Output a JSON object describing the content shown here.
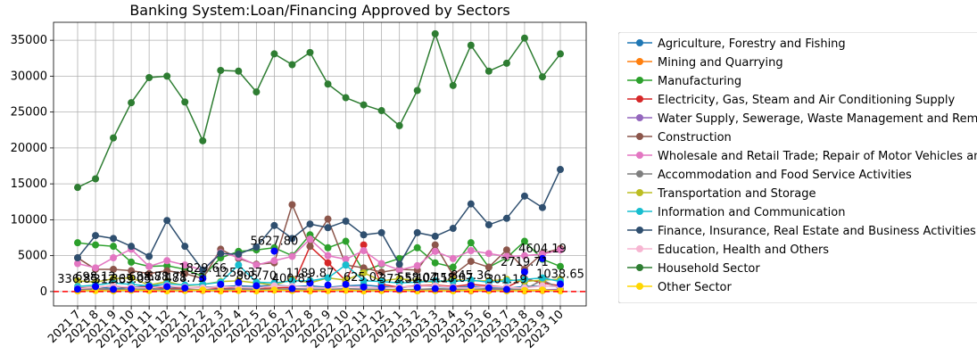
{
  "chart_data": {
    "type": "line",
    "title": "Banking System:Loan/Financing Approved by Sectors",
    "xlabel": "",
    "ylabel": "",
    "categories": [
      "2021 7",
      "2021 8",
      "2021 9",
      "2021 10",
      "2021 11",
      "2021 12",
      "2022 1",
      "2022 2",
      "2022 3",
      "2022 4",
      "2022 5",
      "2022 6",
      "2022 7",
      "2022 8",
      "2022 9",
      "2022 10",
      "2022 11",
      "2022 12",
      "2023 1",
      "2023 2",
      "2023 3",
      "2023 4",
      "2023 5",
      "2023 6",
      "2023 7",
      "2023 8",
      "2023 9",
      "2023 10"
    ],
    "y_ticks": [
      "0",
      "5000",
      "10000",
      "15000",
      "20000",
      "25000",
      "30000",
      "35000"
    ],
    "ylim": [
      -2000,
      37500
    ],
    "grid": true,
    "legend_position": "outside-right",
    "reference_line": {
      "value": 0,
      "color": "#ff0000",
      "style": "dashed"
    },
    "series": [
      {
        "name": "Agriculture, Forestry and Fishing",
        "color": "#1f77b4",
        "values": [
          300,
          700,
          400,
          600,
          800,
          700,
          500,
          600,
          700,
          800,
          700,
          900,
          700,
          800,
          600,
          800,
          900,
          700,
          500,
          800,
          700,
          600,
          700,
          600,
          500,
          700,
          800,
          700
        ]
      },
      {
        "name": "Mining and Quarrying",
        "color": "#ff7f0e",
        "values": [
          100,
          200,
          150,
          200,
          300,
          250,
          200,
          150,
          100,
          200,
          250,
          300,
          200,
          100,
          150,
          200,
          100,
          150,
          200,
          100,
          150,
          200,
          100,
          150,
          200,
          100,
          150,
          200
        ]
      },
      {
        "name": "Manufacturing",
        "color": "#2ca02c",
        "values": [
          6800,
          6500,
          6300,
          4100,
          3500,
          3600,
          3100,
          2100,
          4700,
          5600,
          5800,
          6100,
          5000,
          7900,
          6100,
          7000,
          2800,
          3800,
          4600,
          6100,
          4000,
          3400,
          6800,
          3400,
          4700,
          7000,
          4500,
          3500
        ]
      },
      {
        "name": "Electricity, Gas, Steam and Air Conditioning Supply",
        "color": "#d62728",
        "values": [
          500,
          600,
          800,
          500,
          700,
          400,
          500,
          600,
          400,
          500,
          400,
          500,
          600,
          6300,
          4000,
          1500,
          6500,
          1000,
          600,
          800,
          900,
          700,
          1000,
          800,
          600,
          1800,
          1200,
          800
        ]
      },
      {
        "name": "Water Supply, Sewerage, Waste Management and Remediation Activities",
        "color": "#9467bd",
        "values": [
          200,
          300,
          250,
          300,
          200,
          250,
          300,
          200,
          250,
          300,
          200,
          250,
          300,
          200,
          250,
          300,
          200,
          250,
          300,
          200,
          250,
          300,
          200,
          250,
          300,
          200,
          250,
          300
        ]
      },
      {
        "name": "Construction",
        "color": "#8c564b",
        "values": [
          4700,
          3100,
          3100,
          2900,
          2500,
          2900,
          2500,
          1800,
          5900,
          4600,
          3800,
          4000,
          12100,
          6300,
          10100,
          3700,
          3300,
          2700,
          3100,
          3000,
          6500,
          2300,
          4200,
          3400,
          5800,
          3100,
          5300,
          6000
        ]
      },
      {
        "name": "Wholesale and Retail Trade; Repair of Motor Vehicles and Motorcycles",
        "color": "#e377c2",
        "values": [
          3900,
          3300,
          4700,
          5900,
          3500,
          4300,
          3700,
          3000,
          5400,
          4800,
          3700,
          4300,
          4900,
          7300,
          5000,
          4500,
          5700,
          3900,
          3000,
          3600,
          5600,
          4600,
          5700,
          5300,
          4900,
          5000,
          5200,
          5800
        ]
      },
      {
        "name": "Accommodation and Food Service Activities",
        "color": "#7f7f7f",
        "values": [
          300,
          400,
          350,
          300,
          400,
          350,
          300,
          250,
          300,
          400,
          350,
          300,
          400,
          350,
          300,
          400,
          350,
          300,
          250,
          300,
          400,
          350,
          300,
          400,
          350,
          300,
          1600,
          400
        ]
      },
      {
        "name": "Transportation and Storage",
        "color": "#bcbd22",
        "values": [
          1500,
          1300,
          1800,
          1900,
          900,
          1400,
          800,
          1000,
          1400,
          1500,
          1200,
          900,
          1700,
          1200,
          1900,
          1600,
          2600,
          1500,
          1800,
          1500,
          1300,
          1700,
          1500,
          1500,
          1700,
          1400,
          1600,
          1700
        ]
      },
      {
        "name": "Information and Communication",
        "color": "#17becf",
        "values": [
          700,
          900,
          1200,
          1000,
          800,
          1100,
          900,
          1000,
          1300,
          3700,
          1300,
          1200,
          1500,
          1500,
          1900,
          3700,
          1500,
          1400,
          1200,
          1300,
          1500,
          1400,
          1600,
          1300,
          1500,
          1700,
          1900,
          1400
        ]
      },
      {
        "name": "Finance, Insurance, Real Estate and Business Activities",
        "color": "#2f4f6f",
        "values": [
          4700,
          7800,
          7400,
          6300,
          4900,
          9900,
          6300,
          3000,
          5300,
          5200,
          6200,
          9200,
          7400,
          9400,
          8900,
          9800,
          7900,
          8200,
          3800,
          8200,
          7700,
          8800,
          12200,
          9300,
          10200,
          13300,
          11700,
          17000
        ]
      },
      {
        "name": "Education, Health and Others",
        "color": "#f7b6d2",
        "values": [
          400,
          600,
          800,
          600,
          500,
          800,
          600,
          500,
          700,
          600,
          500,
          800,
          700,
          600,
          500,
          700,
          600,
          500,
          600,
          700,
          800,
          600,
          500,
          700,
          600,
          500,
          800,
          700
        ]
      },
      {
        "name": "Household Sector",
        "color": "#2e7d32",
        "values": [
          14500,
          15700,
          21400,
          26300,
          29800,
          30000,
          26400,
          21000,
          30800,
          30700,
          27800,
          33100,
          31600,
          33300,
          28900,
          27000,
          26000,
          25200,
          23100,
          28000,
          35900,
          28700,
          34300,
          30700,
          31800,
          35300,
          29900,
          33100
        ]
      },
      {
        "name": "Other Sector",
        "color": "#ffd700",
        "values": [
          100,
          150,
          100,
          200,
          150,
          100,
          150,
          200,
          100,
          150,
          100,
          200,
          150,
          100,
          150,
          200,
          100,
          150,
          200,
          100,
          150,
          100,
          200,
          150,
          100,
          150,
          200,
          100
        ]
      }
    ],
    "highlight_series": {
      "color": "#0000ff",
      "values": [
        336.85,
        698.12,
        312.39,
        363.05,
        688.71,
        688.71,
        488.73,
        1829.66,
        1000.0,
        1256.37,
        805.7,
        5627.8,
        400.83,
        1189.87,
        900.0,
        1000.0,
        625.02,
        550.0,
        372.52,
        558.07,
        404.17,
        458.07,
        845.36,
        500.0,
        301.19,
        2719.71,
        4604.19,
        1038.65
      ],
      "labels": [
        "336.85",
        "698.12",
        "312.39",
        "363.05",
        "688.71",
        "688.71",
        "488.73",
        "1829.66",
        "",
        "1256.37",
        "805.70",
        "5627.80",
        "400.83",
        "1189.87",
        "",
        "",
        "625.02",
        "",
        "372.52",
        "558.07",
        "404.17",
        "458.07",
        "845.36",
        "",
        "301.19",
        "2719.71",
        "4604.19",
        "1038.65"
      ]
    }
  }
}
